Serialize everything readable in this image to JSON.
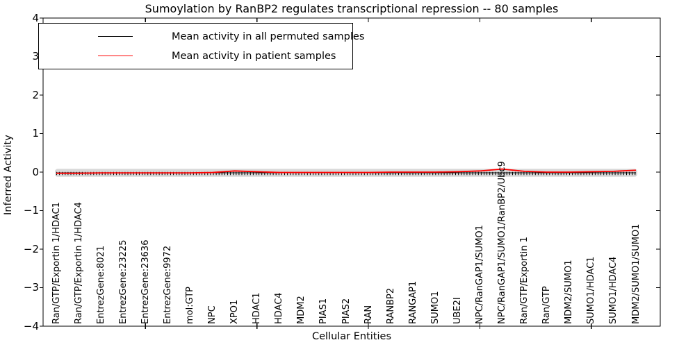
{
  "chart_data": {
    "type": "line",
    "title": "Sumoylation by RanBP2 regulates transcriptional repression -- 80 samples",
    "xlabel": "Cellular Entities",
    "ylabel": "Inferred Activity",
    "ylim": [
      -4,
      4
    ],
    "yticks": [
      4,
      3,
      2,
      1,
      0,
      -1,
      -2,
      -3,
      -4
    ],
    "ytick_labels": [
      "4",
      "3",
      "2",
      "1",
      "0",
      "−1",
      "−2",
      "−3",
      "−4"
    ],
    "categories": [
      "Ran/GTP/Exportin 1/HDAC1",
      "Ran/GTP/Exportin 1/HDAC4",
      "EntrezGene:8021",
      "EntrezGene:23225",
      "EntrezGene:23636",
      "EntrezGene:9972",
      "mol:GTP",
      "NPC",
      "XPO1",
      "HDAC1",
      "HDAC4",
      "MDM2",
      "PIAS1",
      "PIAS2",
      "RAN",
      "RANBP2",
      "RANGAP1",
      "SUMO1",
      "UBE2I",
      "NPC/RanGAP1/SUMO1",
      "NPC/RanGAP1/SUMO1/RanBP2/Ubc9",
      "Ran/GTP/Exportin 1",
      "Ran/GTP",
      "MDM2/SUMO1",
      "SUMO1/HDAC1",
      "SUMO1/HDAC4",
      "MDM2/SUMO1/SUMO1"
    ],
    "major_tick_indices": [
      4,
      9,
      14,
      19,
      24
    ],
    "series": [
      {
        "name": "Mean activity in all permuted samples",
        "color": "#000000",
        "values": [
          0,
          0,
          0,
          0,
          0,
          0,
          0,
          0,
          0,
          0,
          0,
          0,
          0,
          0,
          0,
          0,
          0,
          0,
          0,
          0,
          0,
          0,
          0,
          0,
          0,
          0,
          0
        ]
      },
      {
        "name": "Mean activity in patient samples",
        "color": "#ff0000",
        "values": [
          -0.03,
          -0.03,
          -0.02,
          -0.02,
          -0.02,
          -0.02,
          -0.02,
          -0.01,
          0.03,
          0.01,
          -0.01,
          -0.01,
          -0.01,
          -0.01,
          -0.01,
          0,
          0,
          0,
          0.01,
          0.03,
          0.08,
          0.02,
          0,
          0,
          0.01,
          0.02,
          0.05
        ]
      }
    ],
    "band": {
      "color": "#d8d8d8",
      "halfwidth": 0.08
    },
    "legend_position": "upper left",
    "grid": false
  }
}
